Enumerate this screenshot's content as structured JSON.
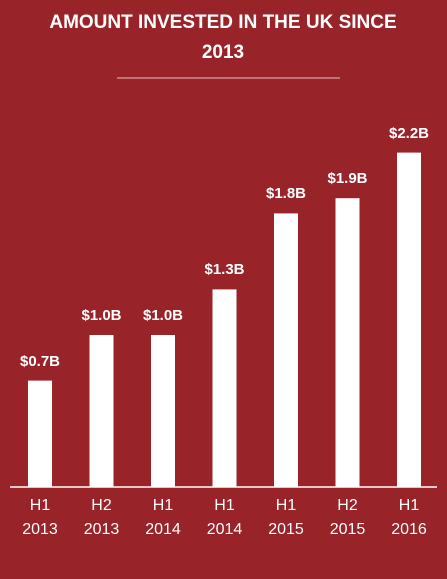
{
  "chart_data": {
    "type": "bar",
    "title": "AMOUNT INVESTED IN THE UK SINCE 2013",
    "categories": [
      "H1 2013",
      "H2 2013",
      "H1 2014",
      "H1 2014",
      "H1 2015",
      "H2 2015",
      "H1 2016"
    ],
    "values": [
      0.7,
      1.0,
      1.0,
      1.3,
      1.8,
      1.9,
      2.2
    ],
    "value_labels": [
      "$0.7B",
      "$1.0B",
      "$1.0B",
      "$1.3B",
      "$1.8B",
      "$1.9B",
      "$2.2B"
    ],
    "color": "#ffffff"
  }
}
